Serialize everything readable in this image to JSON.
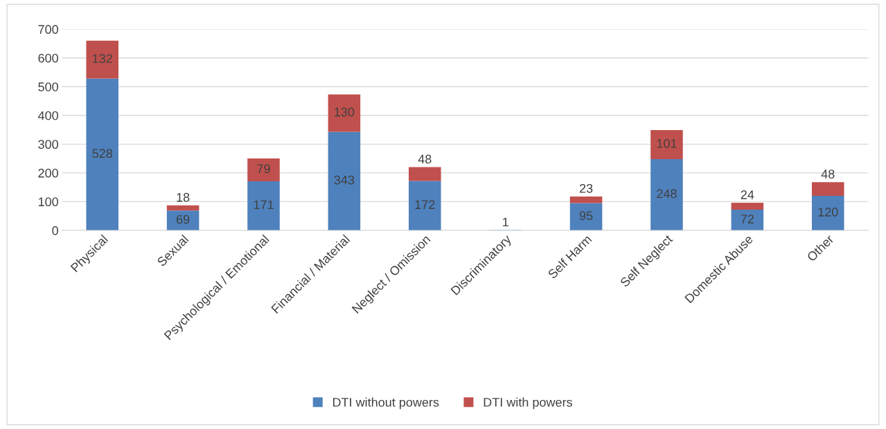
{
  "chart_data": {
    "type": "bar",
    "stacked": true,
    "categories": [
      "Physical",
      "Sexual",
      "Psychological / Emotional",
      "Financial / Material",
      "Neglect / Omission",
      "Discriminatory",
      "Self Harm",
      "Self Neglect",
      "Domestic Abuse",
      "Other"
    ],
    "series": [
      {
        "name": "DTI without powers",
        "color": "#4f81bd",
        "values": [
          528,
          69,
          171,
          343,
          172,
          1,
          95,
          248,
          72,
          120
        ]
      },
      {
        "name": "DTI with powers",
        "color": "#c0504d",
        "values": [
          132,
          18,
          79,
          130,
          48,
          null,
          23,
          101,
          24,
          48
        ]
      }
    ],
    "ylim": [
      0,
      700
    ],
    "yticks": [
      0,
      100,
      200,
      300,
      400,
      500,
      600,
      700
    ],
    "grid": "y",
    "legend": "bottom",
    "data_labels": true
  }
}
